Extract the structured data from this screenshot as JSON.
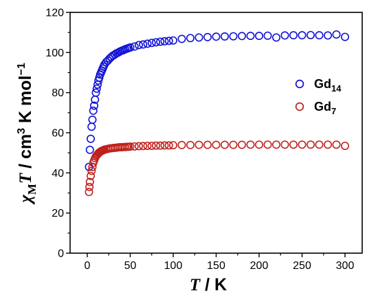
{
  "chart_data": {
    "type": "scatter",
    "xlabel": "T / K",
    "ylabel": "χMT / cm3 K mol−1",
    "xlim": [
      -20,
      320
    ],
    "ylim": [
      0,
      120
    ],
    "x_ticks": [
      0,
      50,
      100,
      150,
      200,
      250,
      300
    ],
    "y_ticks": [
      0,
      20,
      40,
      60,
      80,
      100,
      120
    ],
    "grid": false,
    "legend_position": "right-middle",
    "series": [
      {
        "name": "Gd14",
        "marker_color": "#1010d8",
        "x": [
          2,
          3,
          4,
          5,
          6,
          7,
          8,
          9,
          10,
          11,
          12,
          13,
          14,
          15,
          16,
          17,
          18,
          19,
          20,
          22,
          24,
          26,
          28,
          30,
          32,
          34,
          36,
          38,
          40,
          42,
          44,
          46,
          48,
          50,
          55,
          60,
          65,
          70,
          75,
          80,
          85,
          90,
          95,
          100,
          110,
          120,
          130,
          140,
          150,
          160,
          170,
          180,
          190,
          200,
          210,
          220,
          230,
          240,
          250,
          260,
          270,
          280,
          290,
          300
        ],
        "y": [
          43,
          51.5,
          57,
          63,
          66.5,
          71,
          73.5,
          76.5,
          80,
          82,
          84,
          86,
          87.5,
          89,
          90,
          91,
          92,
          93,
          94,
          95.2,
          96,
          97,
          97.8,
          98.5,
          99,
          99.6,
          100,
          100.5,
          100.9,
          101.2,
          101.6,
          101.9,
          102.2,
          102.5,
          103,
          103.7,
          104,
          104.4,
          104.8,
          105.1,
          105.4,
          105.6,
          105.8,
          106,
          106.8,
          107.2,
          107.5,
          107.7,
          107.9,
          108,
          108.1,
          108.2,
          108.3,
          108.3,
          108.4,
          107.5,
          108.5,
          108.6,
          108.6,
          108.7,
          108.6,
          108.5,
          109,
          107.8
        ]
      },
      {
        "name": "Gd7",
        "marker_color": "#c0211c",
        "x": [
          2,
          2.5,
          3,
          4,
          5,
          6,
          7,
          8,
          9,
          10,
          11,
          12,
          13,
          14,
          15,
          16,
          17,
          18,
          19,
          20,
          22,
          24,
          26,
          28,
          30,
          32,
          34,
          36,
          38,
          40,
          42,
          44,
          46,
          48,
          50,
          55,
          60,
          65,
          70,
          75,
          80,
          85,
          90,
          95,
          100,
          110,
          120,
          130,
          140,
          150,
          160,
          170,
          180,
          190,
          200,
          210,
          220,
          230,
          240,
          250,
          260,
          270,
          280,
          290,
          300
        ],
        "y": [
          30.5,
          33,
          35.5,
          38.5,
          41,
          43,
          45,
          46.2,
          47.3,
          48.2,
          48.8,
          49.3,
          49.8,
          50.2,
          50.5,
          50.8,
          51,
          51.2,
          51.4,
          51.6,
          51.8,
          52,
          52.2,
          52.3,
          52.4,
          52.5,
          52.6,
          52.7,
          52.8,
          52.8,
          52.9,
          52.9,
          53,
          53,
          53.1,
          53.2,
          53.3,
          53.4,
          53.5,
          53.5,
          53.6,
          53.6,
          53.7,
          53.7,
          53.8,
          53.9,
          53.9,
          54,
          54,
          54,
          54,
          54,
          54,
          54.1,
          54.1,
          54.1,
          54.1,
          54.1,
          54.1,
          54.1,
          54.1,
          54.1,
          54.1,
          54.1,
          53.5
        ]
      }
    ],
    "legend": [
      {
        "name_base": "Gd",
        "name_sub": "14",
        "marker_color": "#1010d8"
      },
      {
        "name_base": "Gd",
        "name_sub": "7",
        "marker_color": "#c0211c"
      }
    ],
    "axis_title_parts": {
      "x_var": "T",
      "x_unit": " / K",
      "y_chi": "χ",
      "y_chi_sub": "M",
      "y_T": "T",
      "y_unit_a": " / cm",
      "y_unit_exp3": "3",
      "y_unit_b": " K mol",
      "y_unit_exp": "−1"
    }
  }
}
